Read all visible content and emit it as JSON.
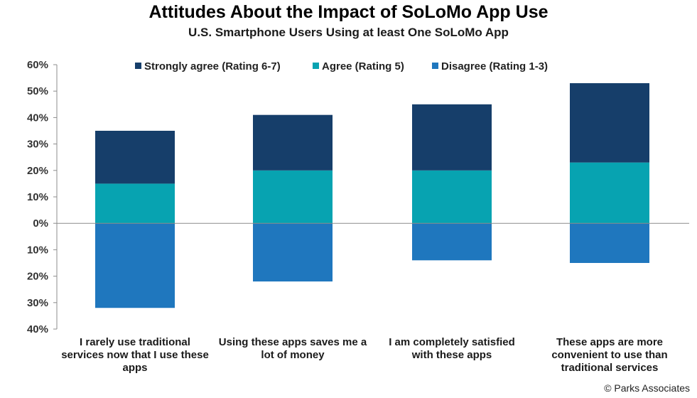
{
  "chart_data": {
    "type": "bar",
    "stacked": true,
    "title": "Attitudes About the Impact of SoLoMo App Use",
    "subtitle": "U.S. Smartphone Users Using at least One SoLoMo App",
    "categories": [
      "I rarely use traditional services now that I use these apps",
      "Using these apps saves me a lot of money",
      "I am completely satisfied with these apps",
      "These apps are more convenient to use than traditional services"
    ],
    "category_lines": [
      [
        "I rarely use traditional",
        "services now that I use these",
        "apps"
      ],
      [
        "Using these apps saves me a",
        "lot of money"
      ],
      [
        "I am completely satisfied",
        "with these apps"
      ],
      [
        "These apps are more",
        "convenient to use than",
        "traditional services"
      ]
    ],
    "series": [
      {
        "name": "Strongly agree (Rating 6-7)",
        "color": "#163E6A",
        "values": [
          20,
          21,
          25,
          30
        ]
      },
      {
        "name": "Agree (Rating 5)",
        "color": "#07A3B1",
        "values": [
          15,
          20,
          20,
          23
        ]
      },
      {
        "name": "Disagree (Rating 1-3)",
        "color": "#1F77BE",
        "values": [
          -32,
          -22,
          -14,
          -15
        ]
      }
    ],
    "ylim": [
      -40,
      60
    ],
    "yticks": [
      60,
      50,
      40,
      30,
      20,
      10,
      0,
      -10,
      -20,
      -30,
      -40
    ],
    "ytick_labels": [
      "60%",
      "50%",
      "40%",
      "30%",
      "20%",
      "10%",
      "0%",
      "10%",
      "20%",
      "30%",
      "40%"
    ],
    "legend_position": "top",
    "grid": false
  },
  "source_note": "© Parks Associates"
}
